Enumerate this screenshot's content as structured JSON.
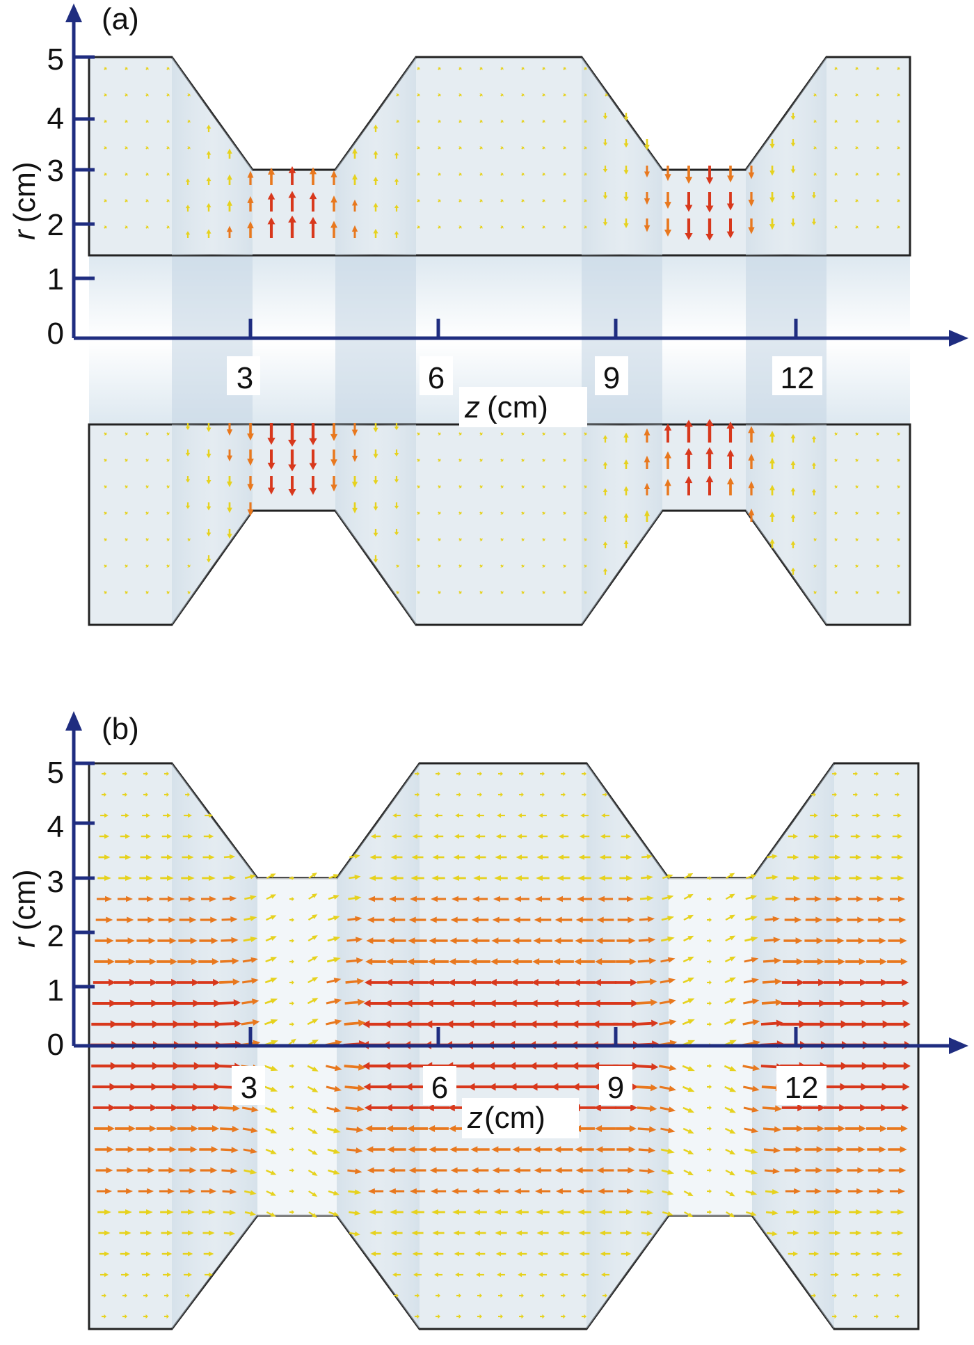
{
  "panels": [
    {
      "label": "(a)",
      "y_axis": {
        "label_var": "r",
        "label_unit": "(cm)",
        "ticks": [
          "0",
          "1",
          "2",
          "3",
          "4",
          "5"
        ]
      },
      "x_axis": {
        "label_var": "z",
        "label_unit": "(cm)",
        "ticks": [
          "3",
          "6",
          "9",
          "12"
        ]
      },
      "field": "radial"
    },
    {
      "label": "(b)",
      "y_axis": {
        "label_var": "r",
        "label_unit": "(cm)",
        "ticks": [
          "0",
          "1",
          "2",
          "3",
          "4",
          "5"
        ]
      },
      "x_axis": {
        "label_var": "z",
        "label_unit": "(cm)",
        "ticks": [
          "3",
          "6",
          "9",
          "12"
        ]
      },
      "field": "axial"
    }
  ],
  "colors": {
    "axis": "#1f2d80",
    "geometry_fill": "#e6edf2",
    "geometry_edge": "#222222",
    "arrow_strong": "#d8381c",
    "arrow_medium": "#e8781e",
    "arrow_weak": "#e6d21e"
  }
}
